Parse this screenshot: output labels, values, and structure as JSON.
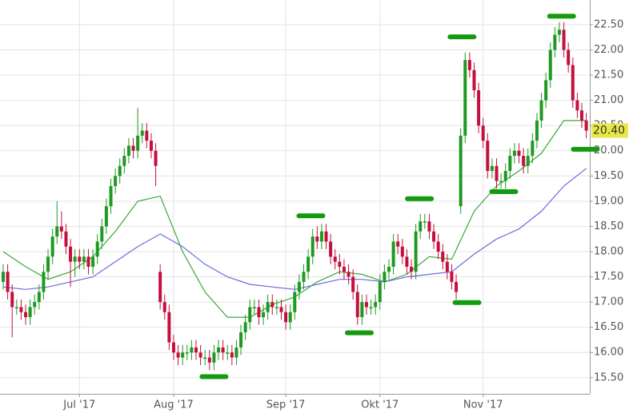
{
  "chart_data": {
    "type": "candlestick",
    "categories": [
      null,
      null,
      null,
      null,
      null,
      null,
      null,
      null,
      null,
      null,
      null,
      null,
      null,
      null,
      null,
      null,
      null,
      "Jul '17",
      null,
      null,
      null,
      null,
      null,
      null,
      null,
      null,
      null,
      null,
      null,
      null,
      null,
      null,
      null,
      null,
      null,
      null,
      null,
      null,
      "Aug '17",
      null,
      null,
      null,
      null,
      null,
      null,
      null,
      null,
      null,
      null,
      null,
      null,
      null,
      null,
      null,
      null,
      null,
      null,
      null,
      null,
      null,
      null,
      null,
      null,
      "Sep '17",
      null,
      null,
      null,
      null,
      null,
      null,
      null,
      null,
      null,
      null,
      null,
      null,
      null,
      null,
      null,
      null,
      null,
      null,
      null,
      null,
      "Okt '17",
      null,
      null,
      null,
      null,
      null,
      null,
      null,
      null,
      null,
      null,
      null,
      null,
      null,
      null,
      null,
      null,
      null,
      null,
      null,
      null,
      null,
      null,
      "Nov '17",
      null,
      null,
      null,
      null,
      null,
      null,
      null,
      null,
      null,
      null,
      null,
      null,
      null,
      null,
      null,
      null,
      null,
      null,
      null,
      null,
      null,
      null,
      null
    ],
    "open": [
      17.4,
      17.6,
      17.2,
      16.9,
      16.9,
      16.8,
      16.7,
      16.9,
      17.0,
      17.2,
      17.6,
      17.9,
      18.3,
      18.5,
      18.4,
      18.1,
      17.8,
      17.9,
      17.8,
      17.9,
      17.7,
      17.9,
      18.2,
      18.5,
      18.9,
      19.3,
      19.5,
      19.7,
      19.9,
      20.1,
      20.0,
      20.3,
      20.4,
      20.2,
      20.0,
      17.6,
      17.0,
      16.8,
      16.2,
      16.0,
      15.9,
      16.0,
      16.0,
      16.1,
      16.0,
      15.9,
      15.9,
      15.8,
      16.0,
      16.1,
      16.0,
      16.0,
      15.9,
      16.1,
      16.4,
      16.6,
      16.9,
      16.9,
      16.7,
      16.8,
      17.0,
      16.9,
      16.9,
      16.8,
      16.6,
      16.8,
      17.2,
      17.4,
      17.6,
      17.9,
      18.3,
      18.2,
      18.4,
      18.2,
      17.9,
      17.8,
      17.7,
      17.6,
      17.5,
      17.2,
      16.7,
      17.0,
      16.9,
      16.9,
      17.0,
      17.4,
      17.6,
      17.7,
      18.2,
      18.1,
      17.9,
      17.7,
      17.6,
      18.4,
      18.6,
      18.6,
      18.4,
      18.2,
      18.0,
      17.8,
      17.6,
      17.4,
      18.9,
      20.3,
      21.8,
      21.6,
      21.2,
      20.5,
      20.2,
      19.6,
      19.7,
      19.4,
      19.4,
      19.6,
      19.9,
      20.0,
      19.9,
      19.7,
      19.9,
      20.2,
      20.6,
      21.0,
      21.4,
      22.0,
      22.3,
      22.4,
      22.0,
      21.7,
      21.0,
      20.8,
      20.6
    ],
    "high": [
      17.75,
      17.75,
      17.35,
      17.05,
      17.05,
      16.95,
      17.05,
      17.15,
      17.35,
      17.75,
      18.05,
      18.45,
      19.0,
      18.8,
      18.55,
      18.25,
      18.05,
      18.05,
      18.05,
      18.05,
      18.05,
      18.35,
      18.65,
      19.05,
      19.45,
      19.65,
      19.85,
      20.05,
      20.25,
      20.25,
      20.85,
      20.55,
      20.55,
      20.35,
      20.15,
      17.75,
      17.15,
      16.95,
      16.35,
      16.15,
      16.15,
      16.15,
      16.25,
      16.25,
      16.15,
      16.05,
      16.05,
      16.15,
      16.25,
      16.25,
      16.15,
      16.15,
      16.25,
      16.55,
      16.75,
      17.05,
      17.05,
      17.05,
      16.95,
      17.15,
      17.15,
      17.05,
      17.05,
      16.95,
      16.95,
      17.35,
      17.55,
      17.75,
      18.05,
      18.45,
      18.5,
      18.55,
      18.55,
      18.35,
      18.05,
      17.95,
      17.85,
      17.75,
      17.65,
      17.35,
      17.15,
      17.15,
      17.05,
      17.15,
      17.55,
      17.75,
      17.85,
      18.35,
      18.35,
      18.25,
      18.05,
      17.85,
      18.55,
      18.75,
      18.75,
      18.75,
      18.55,
      18.35,
      18.15,
      17.95,
      17.75,
      17.55,
      20.45,
      21.95,
      21.95,
      21.75,
      21.35,
      20.65,
      20.35,
      19.85,
      19.85,
      19.55,
      19.75,
      20.05,
      20.15,
      20.15,
      20.05,
      20.05,
      20.35,
      20.75,
      21.15,
      21.55,
      22.15,
      22.45,
      22.55,
      22.55,
      22.15,
      21.85,
      21.15,
      20.95,
      20.75
    ],
    "low": [
      17.25,
      17.05,
      16.3,
      16.75,
      16.65,
      16.55,
      16.55,
      16.75,
      16.85,
      17.05,
      17.45,
      17.75,
      18.15,
      18.25,
      17.95,
      17.3,
      17.5,
      17.65,
      17.65,
      17.55,
      17.55,
      17.75,
      18.05,
      18.35,
      18.75,
      19.15,
      19.35,
      19.55,
      19.75,
      19.85,
      19.85,
      20.15,
      20.05,
      19.85,
      19.3,
      16.85,
      16.65,
      16.05,
      15.85,
      15.75,
      15.75,
      15.85,
      15.85,
      15.85,
      15.75,
      15.75,
      15.65,
      15.65,
      15.85,
      15.85,
      15.85,
      15.75,
      15.75,
      15.95,
      16.25,
      16.45,
      16.75,
      16.55,
      16.55,
      16.65,
      16.75,
      16.75,
      16.65,
      16.45,
      16.45,
      16.65,
      17.05,
      17.25,
      17.45,
      17.75,
      18.05,
      18.05,
      18.05,
      17.75,
      17.65,
      17.55,
      17.45,
      17.35,
      17.05,
      16.55,
      16.55,
      16.75,
      16.75,
      16.75,
      16.85,
      17.25,
      17.45,
      17.55,
      17.95,
      17.75,
      17.55,
      17.45,
      17.45,
      18.25,
      18.45,
      18.25,
      18.05,
      17.85,
      17.65,
      17.45,
      17.25,
      17.05,
      18.75,
      20.15,
      21.45,
      21.05,
      20.35,
      20.05,
      19.45,
      19.45,
      19.25,
      19.25,
      19.25,
      19.45,
      19.75,
      19.75,
      19.55,
      19.55,
      19.75,
      20.05,
      20.45,
      20.85,
      21.25,
      21.85,
      22.15,
      21.85,
      21.55,
      20.85,
      20.65,
      20.45,
      20.25
    ],
    "close": [
      17.6,
      17.2,
      16.9,
      16.9,
      16.8,
      16.7,
      16.9,
      17.0,
      17.2,
      17.6,
      17.9,
      18.3,
      18.5,
      18.4,
      18.1,
      17.8,
      17.9,
      17.8,
      17.9,
      17.7,
      17.9,
      18.2,
      18.5,
      18.9,
      19.3,
      19.5,
      19.7,
      19.9,
      20.1,
      20.0,
      20.3,
      20.4,
      20.2,
      20.0,
      19.7,
      17.0,
      16.8,
      16.2,
      16.0,
      15.9,
      16.0,
      16.0,
      16.1,
      16.0,
      15.9,
      15.9,
      15.8,
      16.0,
      16.1,
      16.0,
      16.0,
      15.9,
      16.1,
      16.4,
      16.6,
      16.9,
      16.9,
      16.7,
      16.8,
      17.0,
      16.9,
      16.9,
      16.8,
      16.6,
      16.8,
      17.2,
      17.4,
      17.6,
      17.9,
      18.3,
      18.2,
      18.4,
      18.2,
      17.9,
      17.8,
      17.7,
      17.6,
      17.5,
      17.2,
      16.7,
      17.0,
      16.9,
      16.9,
      17.0,
      17.4,
      17.6,
      17.7,
      18.2,
      18.1,
      17.9,
      17.7,
      17.6,
      18.4,
      18.6,
      18.6,
      18.4,
      18.2,
      18.0,
      17.8,
      17.6,
      17.4,
      17.2,
      20.3,
      21.8,
      21.6,
      21.2,
      20.5,
      20.2,
      19.6,
      19.7,
      19.4,
      19.4,
      19.6,
      19.9,
      20.0,
      19.9,
      19.7,
      19.9,
      20.2,
      20.6,
      21.0,
      21.4,
      22.0,
      22.3,
      22.4,
      22.0,
      21.7,
      21.0,
      20.8,
      20.6,
      20.4
    ],
    "up_color": "#1e9a22",
    "down_color": "#c4103e",
    "moving_averages": [
      {
        "color": "#3aa83a",
        "x": [
          0,
          5,
          10,
          15,
          20,
          25,
          30,
          35,
          40,
          45,
          50,
          55,
          60,
          65,
          70,
          75,
          80,
          85,
          90,
          95,
          100,
          105,
          110,
          115,
          120,
          125,
          130
        ],
        "values": [
          18.0,
          17.7,
          17.45,
          17.6,
          17.9,
          18.4,
          19.0,
          19.1,
          18.0,
          17.2,
          16.7,
          16.7,
          16.95,
          17.1,
          17.4,
          17.6,
          17.55,
          17.4,
          17.55,
          17.9,
          17.85,
          18.8,
          19.3,
          19.6,
          19.95,
          20.6,
          20.6
        ]
      },
      {
        "color": "#6a6ae0",
        "x": [
          0,
          5,
          10,
          15,
          20,
          25,
          30,
          35,
          40,
          45,
          50,
          55,
          60,
          65,
          70,
          75,
          80,
          85,
          90,
          95,
          100,
          105,
          110,
          115,
          120,
          125,
          130
        ],
        "values": [
          17.3,
          17.25,
          17.3,
          17.4,
          17.5,
          17.8,
          18.1,
          18.35,
          18.1,
          17.75,
          17.5,
          17.35,
          17.3,
          17.25,
          17.35,
          17.45,
          17.45,
          17.4,
          17.5,
          17.55,
          17.6,
          17.95,
          18.25,
          18.45,
          18.8,
          19.3,
          19.65
        ]
      }
    ],
    "markers": {
      "color": "#139a0f",
      "x": [
        47,
        68.6,
        79.4,
        92.8,
        102.3,
        103.4,
        111.6,
        124.5,
        129.8
      ],
      "values": [
        15.52,
        18.71,
        16.39,
        19.05,
        22.26,
        16.99,
        19.19,
        22.67,
        20.03
      ]
    },
    "last_price": {
      "value": 20.4,
      "label": "20.40",
      "color": "#e8e84a"
    },
    "ylim": [
      15.18,
      22.99
    ],
    "yticks": [
      {
        "value": 15.5,
        "label": "15.50"
      },
      {
        "value": 16,
        "label": "16.00"
      },
      {
        "value": 16.5,
        "label": "16.50"
      },
      {
        "value": 17,
        "label": "17.00"
      },
      {
        "value": 17.5,
        "label": "17.50"
      },
      {
        "value": 18,
        "label": "18.00"
      },
      {
        "value": 18.5,
        "label": "18.50"
      },
      {
        "value": 19,
        "label": "19.00"
      },
      {
        "value": 19.5,
        "label": "19.50"
      },
      {
        "value": 20,
        "label": "20.00"
      },
      {
        "value": 20.5,
        "label": "20.50"
      },
      {
        "value": 21,
        "label": "21.00"
      },
      {
        "value": 21.5,
        "label": "21.50"
      },
      {
        "value": 22,
        "label": "22.00"
      },
      {
        "value": 22.5,
        "label": "22.50"
      }
    ],
    "grid": true
  }
}
